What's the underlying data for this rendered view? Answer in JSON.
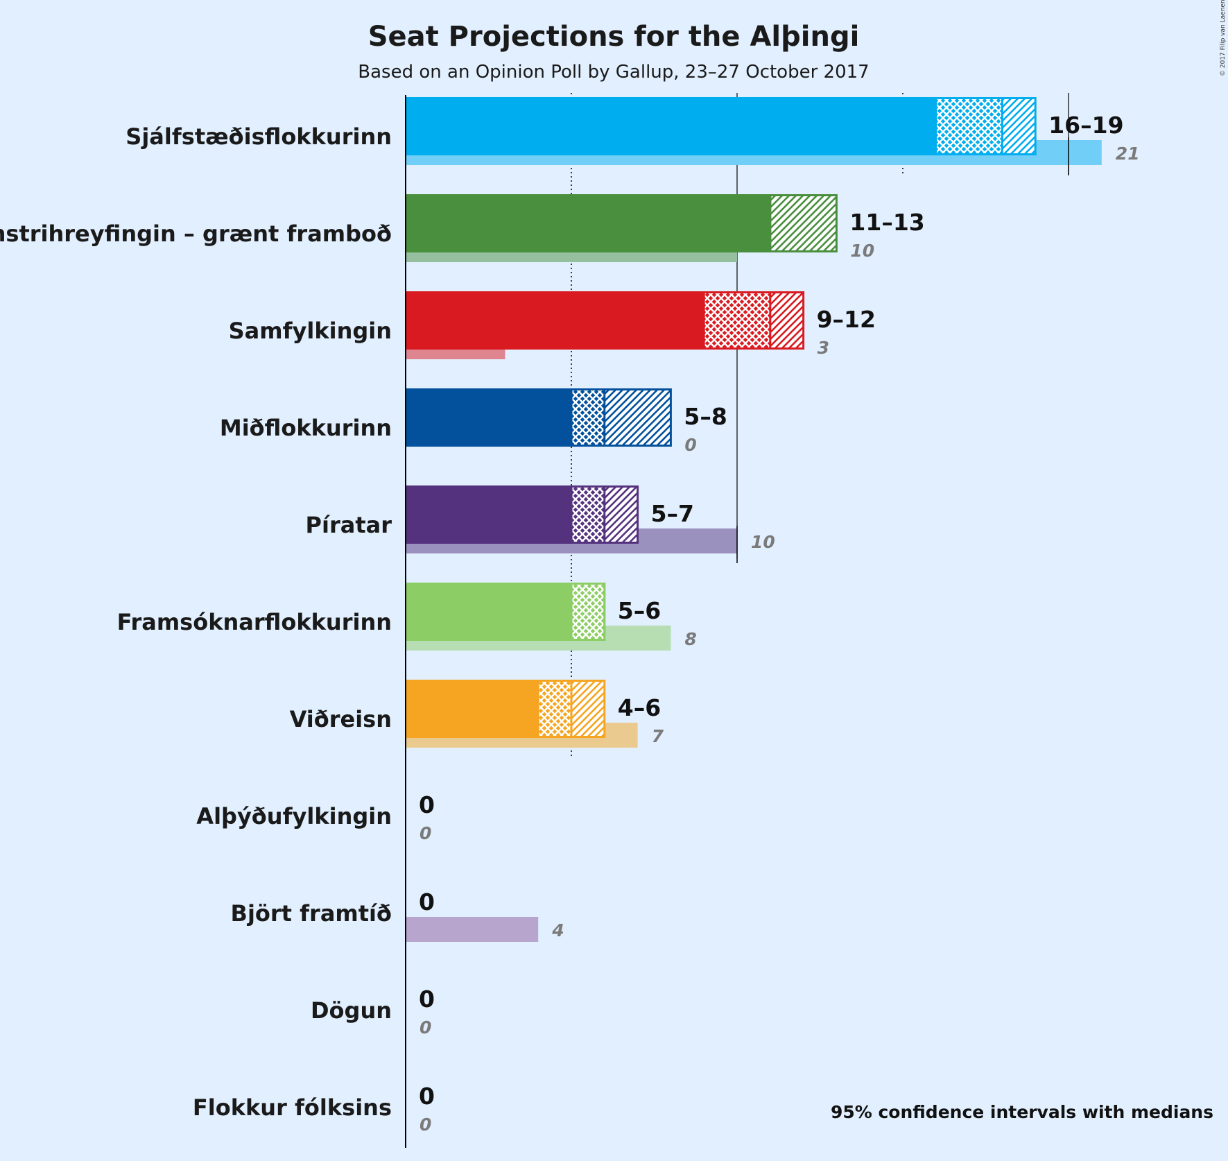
{
  "chart_data": {
    "type": "bar",
    "title": "Seat Projections for the Alþingi",
    "subtitle": "Based on an Opinion Poll by Gallup, 23–27 October 2017",
    "footnote": "95% confidence intervals with medians",
    "copyright": "© 2017 Filip van Laenen",
    "x_gridlines": [
      5,
      10,
      15,
      20
    ],
    "x_gridlines_dotted": [
      5,
      15
    ],
    "xlim": [
      0,
      24
    ],
    "parties": [
      {
        "name": "Sjálfstæðisflokkurinn",
        "color": "#00adef",
        "ci_low": 16,
        "median": 18,
        "ci_high": 19,
        "last": 21,
        "range_label": "16–19",
        "last_label": "21"
      },
      {
        "name": "Vinstrihreyfingin – grænt framboð",
        "color": "#498f3e",
        "ci_low": 11,
        "median": 11,
        "ci_high": 13,
        "last": 10,
        "range_label": "11–13",
        "last_label": "10"
      },
      {
        "name": "Samfylkingin",
        "color": "#da1a21",
        "ci_low": 9,
        "median": 11,
        "ci_high": 12,
        "last": 3,
        "range_label": "9–12",
        "last_label": "3"
      },
      {
        "name": "Miðflokkurinn",
        "color": "#03519c",
        "ci_low": 5,
        "median": 6,
        "ci_high": 8,
        "last": 0,
        "range_label": "5–8",
        "last_label": "0"
      },
      {
        "name": "Píratar",
        "color": "#55327e",
        "ci_low": 5,
        "median": 6,
        "ci_high": 7,
        "last": 10,
        "range_label": "5–7",
        "last_label": "10"
      },
      {
        "name": "Framsóknarflokkurinn",
        "color": "#8dcd66",
        "ci_low": 5,
        "median": 6,
        "ci_high": 6,
        "last": 8,
        "range_label": "5–6",
        "last_label": "8"
      },
      {
        "name": "Viðreisn",
        "color": "#f5a521",
        "ci_low": 4,
        "median": 5,
        "ci_high": 6,
        "last": 7,
        "range_label": "4–6",
        "last_label": "7"
      },
      {
        "name": "Alþýðufylkingin",
        "color": "#c6333a",
        "ci_low": 0,
        "median": 0,
        "ci_high": 0,
        "last": 0,
        "range_label": "0",
        "last_label": "0"
      },
      {
        "name": "Björt framtíð",
        "color": "#8f5a9c",
        "ci_low": 0,
        "median": 0,
        "ci_high": 0,
        "last": 4,
        "range_label": "0",
        "last_label": "4"
      },
      {
        "name": "Dögun",
        "color": "#999999",
        "ci_low": 0,
        "median": 0,
        "ci_high": 0,
        "last": 0,
        "range_label": "0",
        "last_label": "0"
      },
      {
        "name": "Flokkur fólksins",
        "color": "#f9d31f",
        "ci_low": 0,
        "median": 0,
        "ci_high": 0,
        "last": 0,
        "range_label": "0",
        "last_label": "0"
      }
    ]
  }
}
